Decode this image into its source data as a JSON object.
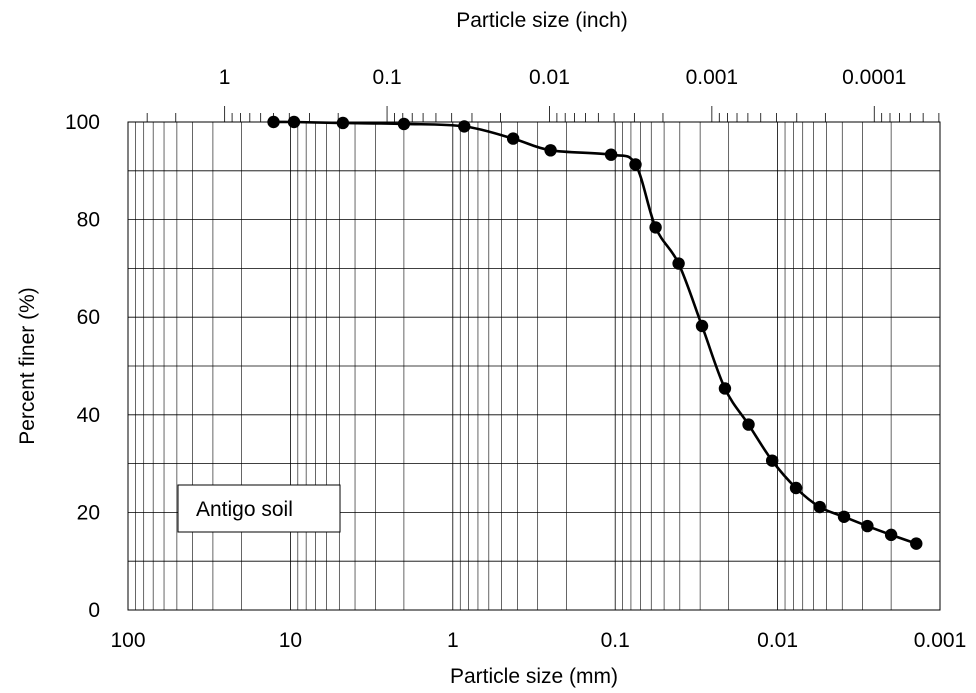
{
  "chart_data": {
    "type": "scatter",
    "subtype": "line-with-markers",
    "title": "",
    "xlabel": "Particle size (mm)",
    "x2label": "Particle size (inch)",
    "ylabel": "Percent finer (%)",
    "x_scale": "log",
    "x_reversed": true,
    "xlim": [
      100,
      0.001
    ],
    "ylim": [
      0,
      100
    ],
    "x_ticks": [
      {
        "value": 100,
        "label": "100"
      },
      {
        "value": 10,
        "label": "10"
      },
      {
        "value": 1,
        "label": "1"
      },
      {
        "value": 0.1,
        "label": "0.1"
      },
      {
        "value": 0.01,
        "label": "0.01"
      },
      {
        "value": 0.001,
        "label": "0.001"
      }
    ],
    "x2_ticks_inch": [
      {
        "value": 1,
        "label": "1"
      },
      {
        "value": 0.1,
        "label": "0.1"
      },
      {
        "value": 0.01,
        "label": "0.01"
      },
      {
        "value": 0.001,
        "label": "0.001"
      },
      {
        "value": 0.0001,
        "label": "0.0001"
      }
    ],
    "y_ticks": [
      {
        "value": 0,
        "label": "0"
      },
      {
        "value": 20,
        "label": "20"
      },
      {
        "value": 40,
        "label": "40"
      },
      {
        "value": 60,
        "label": "60"
      },
      {
        "value": 80,
        "label": "80"
      },
      {
        "value": 100,
        "label": "100"
      }
    ],
    "y_minor_step": 10,
    "grid": true,
    "legend_text": "Antigo soil",
    "legend_placement": "lower-left",
    "series": [
      {
        "color": "#000000",
        "x": [
          12.7,
          9.5,
          4.75,
          2.0,
          0.85,
          0.425,
          0.25,
          0.106,
          0.075,
          0.0564,
          0.0407,
          0.0292,
          0.0211,
          0.0151,
          0.0108,
          0.0077,
          0.0055,
          0.0039,
          0.0028,
          0.002,
          0.0014
        ],
        "y": [
          100,
          100,
          99.8,
          99.6,
          99.1,
          96.6,
          94.2,
          93.3,
          91.3,
          78.4,
          71.0,
          58.2,
          45.4,
          38.0,
          30.6,
          25.0,
          21.1,
          19.1,
          17.2,
          15.4,
          13.6
        ]
      }
    ]
  }
}
